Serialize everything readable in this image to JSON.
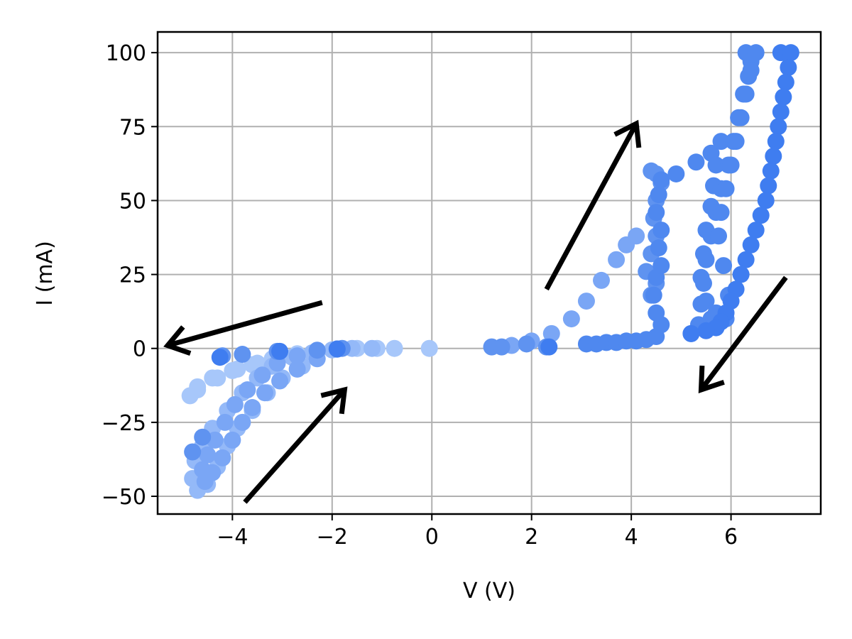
{
  "chart_data": {
    "type": "scatter",
    "title": "",
    "xlabel": "V (V)",
    "ylabel": "I (mA)",
    "xlim": [
      -5.5,
      7.8
    ],
    "ylim": [
      -56,
      107
    ],
    "x_ticks": [
      -4,
      -2,
      0,
      2,
      4,
      6
    ],
    "y_ticks": [
      -50,
      -25,
      0,
      25,
      50,
      75,
      100
    ],
    "x_tick_labels": [
      "−4",
      "−2",
      "0",
      "2",
      "4",
      "6"
    ],
    "y_tick_labels": [
      "−50",
      "−25",
      "0",
      "25",
      "50",
      "75",
      "100"
    ],
    "grid": true,
    "legend": "none",
    "series": [
      {
        "color": "#a7c7fa",
        "points": [
          [
            -0.05,
            0
          ],
          [
            -0.75,
            0
          ],
          [
            -1.1,
            0
          ],
          [
            -1.5,
            0
          ],
          [
            -1.9,
            -0.3
          ],
          [
            -2.3,
            -0.8
          ],
          [
            -2.7,
            -1.8
          ],
          [
            -3.1,
            -3.2
          ],
          [
            -3.5,
            -5
          ],
          [
            -3.9,
            -7
          ],
          [
            -4.3,
            -10
          ],
          [
            -4.7,
            -14
          ],
          [
            -4.85,
            -16
          ],
          [
            -4.7,
            -13
          ],
          [
            -4.4,
            -10
          ],
          [
            -4.0,
            -7.5
          ],
          [
            -3.6,
            -5.5
          ],
          [
            -3.2,
            -3.5
          ]
        ]
      },
      {
        "color": "#94b9f8",
        "points": [
          [
            -1.2,
            0
          ],
          [
            -1.6,
            0
          ],
          [
            -2.0,
            -0.5
          ],
          [
            -2.4,
            -1.5
          ],
          [
            -2.8,
            -3
          ],
          [
            -3.2,
            -6
          ],
          [
            -3.5,
            -10
          ],
          [
            -3.8,
            -15
          ],
          [
            -4.1,
            -21
          ],
          [
            -4.4,
            -27
          ],
          [
            -4.6,
            -33
          ],
          [
            -4.75,
            -38
          ],
          [
            -4.8,
            -44
          ],
          [
            -4.7,
            -48
          ],
          [
            -4.5,
            -46
          ],
          [
            -4.3,
            -40
          ],
          [
            -4.1,
            -33
          ],
          [
            -3.9,
            -27
          ],
          [
            -3.6,
            -21
          ],
          [
            -3.3,
            -15
          ],
          [
            -3.0,
            -10
          ],
          [
            -2.6,
            -6
          ]
        ]
      },
      {
        "color": "#7aa6f5",
        "points": [
          [
            -1.9,
            -0.2
          ],
          [
            -2.3,
            -1
          ],
          [
            -2.7,
            -2.5
          ],
          [
            -3.1,
            -5
          ],
          [
            -3.4,
            -9
          ],
          [
            -3.7,
            -14
          ],
          [
            -3.95,
            -19
          ],
          [
            -4.15,
            -25
          ],
          [
            -4.35,
            -31
          ],
          [
            -4.5,
            -36
          ],
          [
            -4.6,
            -41
          ],
          [
            -4.55,
            -45
          ],
          [
            -4.4,
            -42
          ],
          [
            -4.2,
            -37
          ],
          [
            -4.0,
            -31
          ],
          [
            -3.8,
            -25
          ],
          [
            -3.6,
            -20
          ],
          [
            -3.35,
            -15
          ],
          [
            -3.05,
            -11
          ],
          [
            -2.7,
            -7
          ],
          [
            -2.3,
            -3.5
          ],
          [
            1.6,
            1
          ],
          [
            2.0,
            2.5
          ],
          [
            2.4,
            5
          ],
          [
            2.8,
            10
          ],
          [
            3.1,
            16
          ],
          [
            3.4,
            23
          ],
          [
            3.7,
            30
          ],
          [
            3.9,
            35
          ],
          [
            4.1,
            38
          ]
        ]
      },
      {
        "color": "#5f93f0",
        "points": [
          [
            -1.8,
            0
          ],
          [
            -2.3,
            -0.6
          ],
          [
            -3.1,
            -1
          ],
          [
            -3.8,
            -2
          ],
          [
            -4.2,
            -2.5
          ],
          [
            -4.6,
            -30
          ],
          [
            -4.8,
            -35
          ],
          [
            1.2,
            0.5
          ],
          [
            1.4,
            0.5
          ],
          [
            1.9,
            1.5
          ],
          [
            2.3,
            0.5
          ],
          [
            4.4,
            18
          ],
          [
            4.5,
            22
          ],
          [
            4.3,
            26
          ],
          [
            4.4,
            32
          ],
          [
            4.5,
            38
          ],
          [
            4.45,
            44
          ],
          [
            4.5,
            50
          ],
          [
            4.6,
            56
          ],
          [
            4.5,
            59
          ],
          [
            4.4,
            60
          ]
        ]
      },
      {
        "color": "#4f88ef",
        "points": [
          [
            3.1,
            1.5
          ],
          [
            3.3,
            1.5
          ],
          [
            3.5,
            2
          ],
          [
            3.7,
            2
          ],
          [
            3.9,
            2.5
          ],
          [
            4.1,
            2.5
          ],
          [
            4.3,
            3
          ],
          [
            4.5,
            4
          ],
          [
            4.6,
            8
          ],
          [
            4.5,
            12
          ],
          [
            4.45,
            18
          ],
          [
            4.5,
            24
          ],
          [
            4.6,
            28
          ],
          [
            4.55,
            34
          ],
          [
            4.6,
            40
          ],
          [
            4.5,
            46
          ],
          [
            4.55,
            52
          ],
          [
            4.6,
            57
          ],
          [
            4.9,
            59
          ],
          [
            5.3,
            63
          ],
          [
            5.6,
            66
          ],
          [
            5.8,
            70
          ],
          [
            5.7,
            62
          ],
          [
            5.65,
            55
          ],
          [
            5.6,
            48
          ],
          [
            5.5,
            40
          ],
          [
            5.45,
            32
          ],
          [
            5.4,
            24
          ],
          [
            5.5,
            16
          ],
          [
            5.6,
            10
          ],
          [
            5.2,
            5
          ],
          [
            5.35,
            8
          ],
          [
            5.4,
            15
          ],
          [
            5.45,
            22
          ],
          [
            5.5,
            30
          ],
          [
            5.6,
            38
          ],
          [
            5.7,
            46
          ],
          [
            5.8,
            54
          ],
          [
            5.95,
            62
          ],
          [
            6.05,
            70
          ],
          [
            6.15,
            78
          ],
          [
            6.25,
            86
          ],
          [
            6.35,
            92
          ],
          [
            6.4,
            97
          ],
          [
            6.3,
            100
          ],
          [
            6.5,
            100
          ],
          [
            6.4,
            94
          ],
          [
            6.3,
            86
          ],
          [
            6.2,
            78
          ],
          [
            6.1,
            70
          ],
          [
            6.0,
            62
          ],
          [
            5.9,
            54
          ],
          [
            5.8,
            46
          ],
          [
            5.75,
            38
          ],
          [
            5.85,
            28
          ],
          [
            5.95,
            18
          ],
          [
            5.7,
            12
          ],
          [
            5.9,
            10
          ]
        ]
      },
      {
        "color": "#3f7df0",
        "points": [
          [
            -4.25,
            -3
          ],
          [
            -3.05,
            -1
          ],
          [
            -1.9,
            -0.2
          ],
          [
            2.35,
            0.5
          ],
          [
            7.0,
            100
          ],
          [
            7.2,
            100
          ],
          [
            7.15,
            95
          ],
          [
            7.1,
            90
          ],
          [
            7.05,
            85
          ],
          [
            7.0,
            80
          ],
          [
            6.95,
            75
          ],
          [
            6.9,
            70
          ],
          [
            6.85,
            65
          ],
          [
            6.8,
            60
          ],
          [
            6.75,
            55
          ],
          [
            6.7,
            50
          ],
          [
            6.6,
            45
          ],
          [
            6.5,
            40
          ],
          [
            6.4,
            35
          ],
          [
            6.3,
            30
          ],
          [
            6.2,
            25
          ],
          [
            6.1,
            20
          ],
          [
            6.0,
            16
          ],
          [
            5.9,
            12
          ],
          [
            5.8,
            9
          ],
          [
            5.7,
            7
          ],
          [
            5.5,
            6
          ],
          [
            5.2,
            5
          ]
        ]
      }
    ],
    "annotations": [
      {
        "type": "arrow",
        "from": [
          -2.2,
          15.5
        ],
        "to": [
          -5.3,
          1
        ]
      },
      {
        "type": "arrow",
        "from": [
          -3.75,
          -52
        ],
        "to": [
          -1.75,
          -14
        ]
      },
      {
        "type": "arrow",
        "from": [
          2.3,
          20
        ],
        "to": [
          4.1,
          76
        ]
      },
      {
        "type": "arrow",
        "from": [
          7.1,
          24
        ],
        "to": [
          5.4,
          -14
        ]
      }
    ]
  }
}
